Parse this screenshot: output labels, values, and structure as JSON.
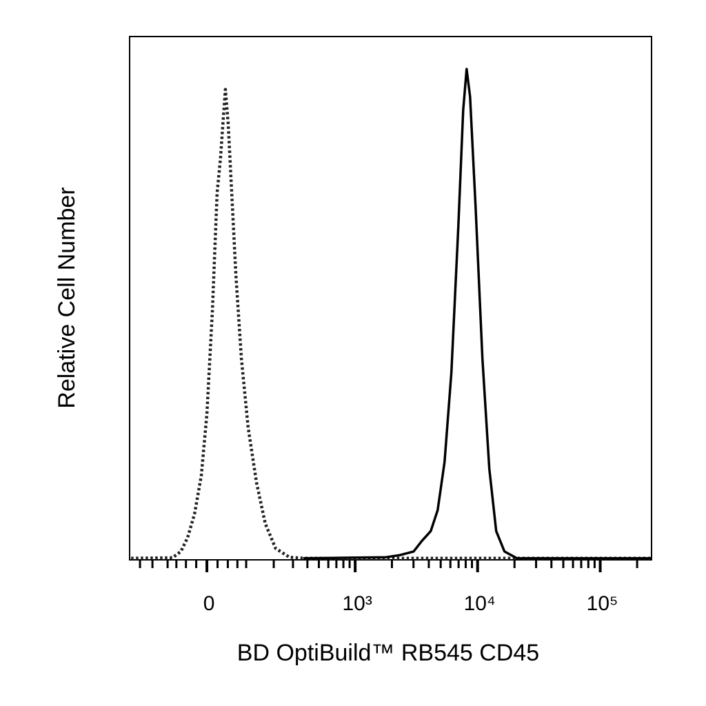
{
  "chart_data": {
    "type": "line",
    "xlabel": "BD OptiBuild™ RB545 CD45",
    "ylabel": "Relative Cell Number",
    "xscale": "biexponential",
    "xlim": [
      -250,
      262144
    ],
    "ylim": [
      0,
      100
    ],
    "xticks": [
      0,
      {
        "value": 1000,
        "label": "10³"
      },
      {
        "value": 10000,
        "label": "10⁴"
      },
      {
        "value": 100000,
        "label": "10⁵"
      }
    ],
    "minor_xticks": [
      -200,
      -150,
      -100,
      -75,
      -50,
      -25,
      25,
      50,
      75,
      100,
      200,
      300,
      400,
      500,
      600,
      700,
      800,
      900,
      2000,
      3000,
      4000,
      5000,
      6000,
      7000,
      8000,
      9000,
      20000,
      30000,
      40000,
      50000,
      60000,
      70000,
      80000,
      90000,
      200000
    ],
    "series": [
      {
        "color": "#222222",
        "linestyle": "dotted",
        "x": [
          -242,
          -86,
          -63,
          -46,
          -29,
          -13,
          0,
          13,
          24,
          32,
          39,
          44,
          51,
          60,
          71,
          86,
          106,
          133,
          165,
          208,
          279,
          369,
          262144
        ],
        "values": [
          0.3,
          0.4,
          1.6,
          4.2,
          8.8,
          16.1,
          27.9,
          47.7,
          70.1,
          76.7,
          84.6,
          89.9,
          83.3,
          70.1,
          54.3,
          38.5,
          25.3,
          14.8,
          6.9,
          2.2,
          0.5,
          0.3,
          0.3
        ]
      },
      {
        "color": "#000000",
        "linestyle": "solid",
        "x": [
          369,
          1786,
          2318,
          3006,
          3509,
          4152,
          4724,
          5375,
          6113,
          6956,
          7626,
          8134,
          8680,
          9635,
          10949,
          12462,
          14186,
          16566,
          20906,
          262144
        ],
        "values": [
          0.3,
          0.5,
          0.9,
          1.6,
          3.6,
          5.5,
          9.5,
          18.7,
          35.8,
          63.5,
          85.9,
          93.8,
          88.5,
          67.5,
          38.5,
          17.4,
          5.5,
          1.6,
          0.3,
          0.3
        ]
      }
    ]
  }
}
